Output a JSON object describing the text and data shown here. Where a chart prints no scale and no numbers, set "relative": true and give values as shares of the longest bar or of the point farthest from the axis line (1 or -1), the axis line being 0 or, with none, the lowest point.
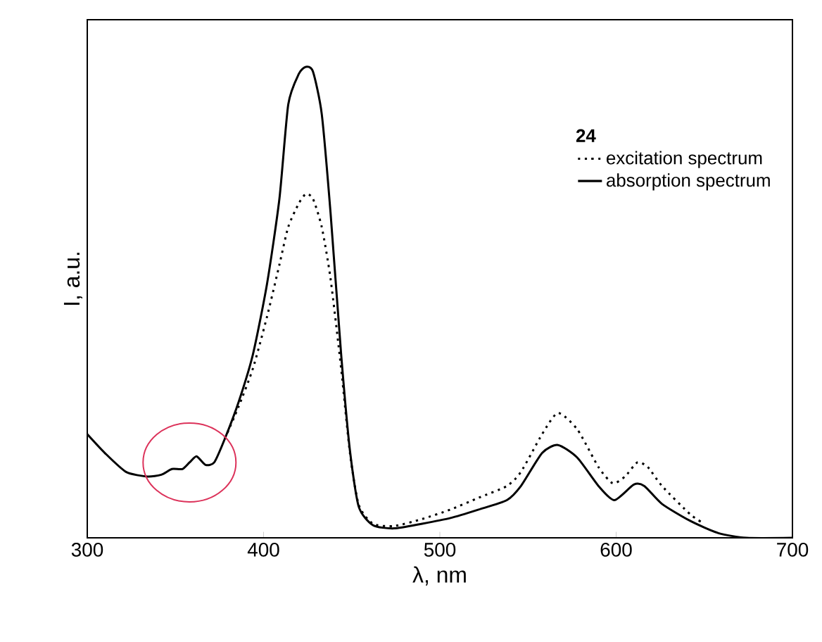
{
  "chart_data": {
    "type": "line",
    "relative": true,
    "xlabel": "λ, nm",
    "ylabel": "I, a.u.",
    "legend_title": "24",
    "legend": "top right",
    "xlim": [
      300,
      700
    ],
    "xticks": [
      300,
      400,
      500,
      600,
      700
    ],
    "series": [
      {
        "name": "excitation spectrum",
        "color": "#000000",
        "line_style": "dotted",
        "x": [
          378,
          386,
          394,
          402,
          409,
          414,
          420,
          424,
          428,
          433,
          438,
          444,
          449,
          454,
          462,
          474,
          490,
          506,
          522,
          538,
          546,
          558,
          567,
          578,
          590,
          598,
          605,
          612,
          618,
          626,
          642,
          650
        ],
        "values": [
          0.21,
          0.28,
          0.36,
          0.47,
          0.58,
          0.66,
          0.71,
          0.73,
          0.72,
          0.66,
          0.55,
          0.36,
          0.18,
          0.07,
          0.03,
          0.025,
          0.04,
          0.06,
          0.085,
          0.11,
          0.14,
          0.22,
          0.265,
          0.23,
          0.15,
          0.116,
          0.13,
          0.16,
          0.15,
          0.11,
          0.05,
          0.03
        ]
      },
      {
        "name": "absorption spectrum",
        "color": "#000000",
        "line_style": "solid",
        "x": [
          300,
          310,
          322,
          334,
          342,
          348,
          354,
          358,
          362,
          367,
          372,
          378,
          386,
          394,
          402,
          409,
          414,
          420,
          424,
          428,
          433,
          438,
          444,
          449,
          454,
          462,
          474,
          490,
          506,
          522,
          538,
          546,
          558,
          567,
          578,
          590,
          599,
          610,
          616,
          626,
          642,
          658,
          674,
          700
        ],
        "values": [
          0.22,
          0.18,
          0.14,
          0.13,
          0.134,
          0.146,
          0.146,
          0.16,
          0.173,
          0.155,
          0.16,
          0.21,
          0.29,
          0.39,
          0.54,
          0.72,
          0.92,
          0.985,
          1.0,
          0.99,
          0.9,
          0.69,
          0.39,
          0.185,
          0.066,
          0.027,
          0.02,
          0.03,
          0.042,
          0.06,
          0.08,
          0.11,
          0.18,
          0.197,
          0.17,
          0.11,
          0.08,
          0.113,
          0.11,
          0.072,
          0.036,
          0.01,
          0.0,
          0.0
        ]
      }
    ]
  }
}
